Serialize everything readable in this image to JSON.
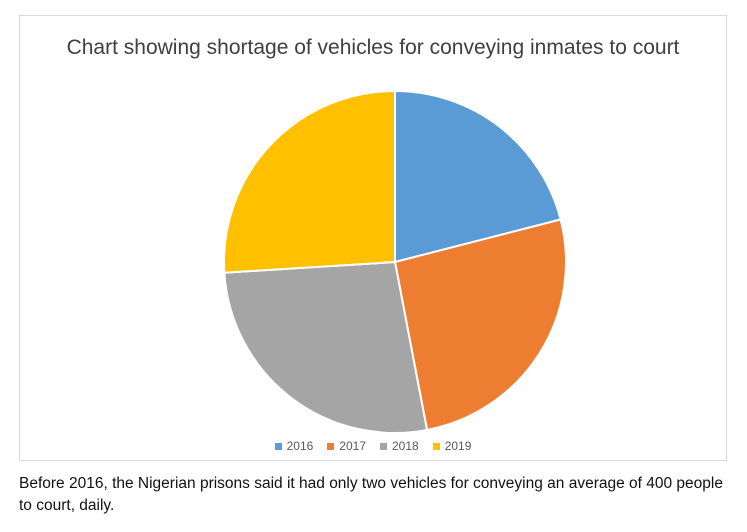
{
  "chart_data": {
    "type": "pie",
    "title": "Chart showing shortage of vehicles for conveying inmates to court",
    "categories": [
      "2016",
      "2017",
      "2018",
      "2019"
    ],
    "values": [
      21,
      26,
      27,
      26
    ],
    "colors": [
      "#5b9bd5",
      "#ed7d31",
      "#a5a5a5",
      "#ffc000"
    ],
    "legend_position": "bottom",
    "start_angle": "top",
    "direction": "clockwise"
  },
  "caption": "Before 2016, the Nigerian prisons said it had only two vehicles for conveying an average of 400 people to court, daily."
}
